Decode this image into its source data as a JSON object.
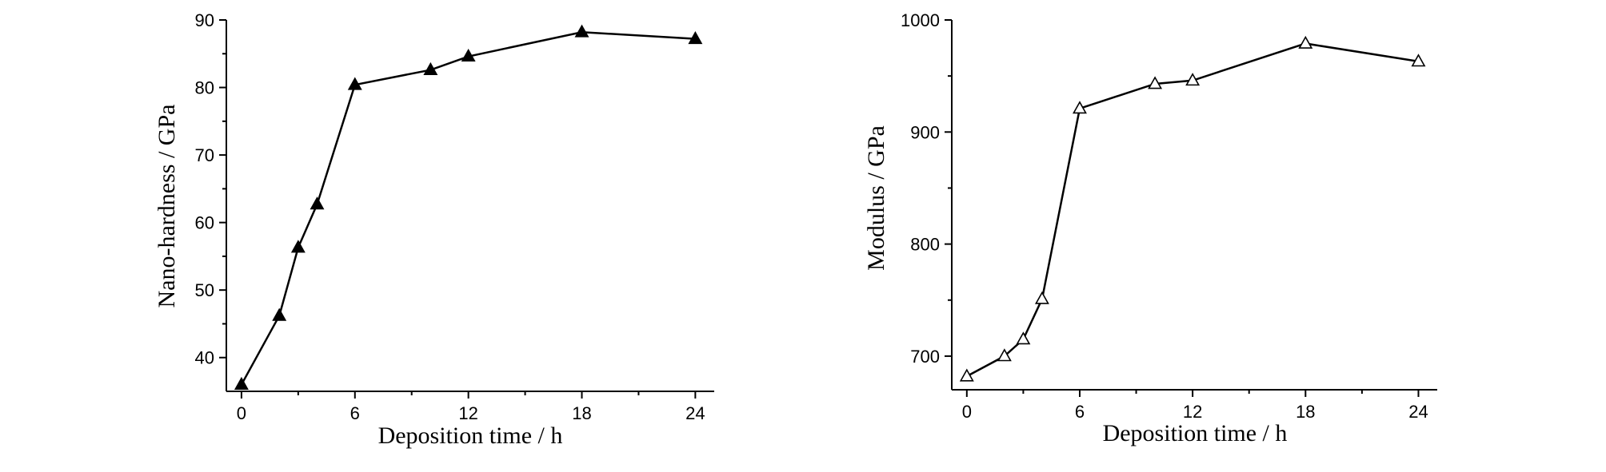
{
  "chart_data": [
    {
      "type": "line",
      "xlabel": "Deposition time / h",
      "ylabel": "Nano-hardness / GPa",
      "xlim": [
        -0.8,
        25
      ],
      "ylim": [
        35,
        90
      ],
      "xticks": [
        0,
        6,
        12,
        18,
        24
      ],
      "yticks": [
        40,
        50,
        60,
        70,
        80,
        90
      ],
      "marker": "filled-triangle",
      "series": [
        {
          "x": [
            0,
            2,
            3,
            4,
            6,
            10,
            12,
            18,
            24
          ],
          "y": [
            36,
            46.2,
            56.3,
            62.7,
            80.4,
            82.6,
            84.6,
            88.2,
            87.2
          ]
        }
      ]
    },
    {
      "type": "line",
      "xlabel": "Deposition time / h",
      "ylabel": "Modulus / GPa",
      "xlim": [
        -0.8,
        25
      ],
      "ylim": [
        670,
        1000
      ],
      "xticks": [
        0,
        6,
        12,
        18,
        24
      ],
      "yticks": [
        700,
        800,
        900,
        1000
      ],
      "marker": "open-triangle",
      "series": [
        {
          "x": [
            0,
            2,
            3,
            4,
            6,
            10,
            12,
            18,
            24
          ],
          "y": [
            682,
            700,
            715,
            751,
            921,
            943,
            946,
            979,
            963
          ]
        }
      ]
    }
  ]
}
